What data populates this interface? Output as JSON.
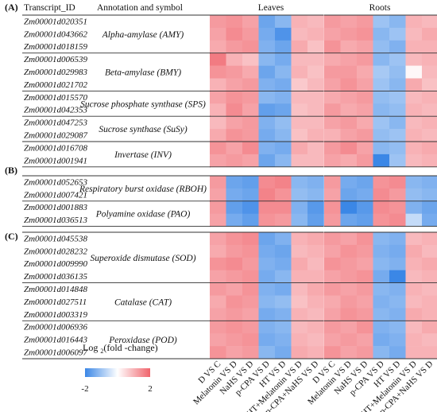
{
  "figure": {
    "header_id": "Transcript_ID",
    "header_annotation": "Annotation and symbol",
    "header_leaves": "Leaves",
    "header_roots": "Roots",
    "panel_labels": [
      "(A)",
      "(B)",
      "(C)"
    ],
    "legend_title_pre": "Log ",
    "legend_title_sub": "2",
    "legend_title_post": "(fold -change)",
    "legend_min": "-2",
    "legend_max": "2"
  },
  "chart_data": {
    "type": "heatmap",
    "scale": {
      "min": -2,
      "max": 2,
      "low_color": "#3b87e6",
      "mid_color": "#ffffff",
      "high_color": "#f0646c"
    },
    "columns": [
      "D VS C",
      "Melatonin VS D",
      "NaHS VS D",
      "p-CPA VS D",
      "HT VS D",
      "HT+Melatonin VS D",
      "p-CPA+NaHS VS D"
    ],
    "groups": [
      {
        "panel": "(A)",
        "annotation": "Alpha-amylase (AMY)",
        "rows": [
          "Zm00001d020351",
          "Zm00001d043662",
          "Zm00001d018159"
        ]
      },
      {
        "panel": "(A)",
        "annotation": "Beta-amylase (BMY)",
        "rows": [
          "Zm00001d006539",
          "Zm00001d029983",
          "Zm00001d021702"
        ]
      },
      {
        "panel": "(A)",
        "annotation": "Sucrose phosphate synthase (SPS)",
        "rows": [
          "Zm00001d015570",
          "Zm00001d042353"
        ]
      },
      {
        "panel": "(A)",
        "annotation": "Sucrose synthase (SuSy)",
        "rows": [
          "Zm00001d047253",
          "Zm00001d029087"
        ]
      },
      {
        "panel": "(A)",
        "annotation": "Invertase (INV)",
        "rows": [
          "Zm00001d016708",
          "Zm00001d001941"
        ]
      },
      {
        "panel": "(B)",
        "annotation": "Respiratory burst oxidase (RBOH)",
        "rows": [
          "Zm00001d052653",
          "Zm00001d007421"
        ]
      },
      {
        "panel": "(B)",
        "annotation": "Polyamine oxidase (PAO)",
        "rows": [
          "Zm00001d001883",
          "Zm00001d036513"
        ]
      },
      {
        "panel": "(C)",
        "annotation": "Superoxide dismutase (SOD)",
        "rows": [
          "Zm00001d045538",
          "Zm00001d028232",
          "Zm00001d009990",
          "Zm00001d036135"
        ]
      },
      {
        "panel": "(C)",
        "annotation": "Catalase (CAT)",
        "rows": [
          "Zm00001d014848",
          "Zm00001d027511",
          "Zm00001d003319"
        ]
      },
      {
        "panel": "(C)",
        "annotation": "Peroxidase (POD)",
        "rows": [
          "Zm00001d006936",
          "Zm00001d016443",
          "Zm00001d006097"
        ]
      }
    ],
    "leaves": [
      [
        1.3,
        1.4,
        1.2,
        -1.5,
        -1.2,
        1.0,
        0.9
      ],
      [
        1.2,
        1.5,
        1.3,
        -1.4,
        -1.8,
        0.9,
        1.0
      ],
      [
        1.1,
        1.3,
        1.4,
        -1.3,
        -1.5,
        1.1,
        0.8
      ],
      [
        1.7,
        1.0,
        0.8,
        -1.2,
        -1.4,
        0.9,
        0.9
      ],
      [
        1.4,
        1.3,
        1.1,
        -1.5,
        -1.2,
        1.0,
        0.8
      ],
      [
        1.0,
        1.2,
        1.3,
        -1.3,
        -1.4,
        0.7,
        0.9
      ],
      [
        1.2,
        1.4,
        1.3,
        -1.2,
        -1.3,
        0.9,
        0.9
      ],
      [
        1.0,
        1.5,
        1.2,
        -1.6,
        -1.5,
        0.8,
        0.9
      ],
      [
        0.9,
        1.2,
        1.3,
        -1.3,
        -1.1,
        0.9,
        0.9
      ],
      [
        1.1,
        1.4,
        1.3,
        -1.4,
        -1.2,
        0.8,
        1.0
      ],
      [
        1.4,
        1.2,
        1.5,
        -1.3,
        -1.4,
        1.1,
        0.9
      ],
      [
        1.2,
        1.3,
        1.2,
        -1.5,
        -1.2,
        0.9,
        0.9
      ],
      [
        1.3,
        -1.5,
        -1.6,
        1.5,
        1.6,
        -1.2,
        -1.3
      ],
      [
        1.2,
        -1.4,
        -1.5,
        1.6,
        1.4,
        -1.1,
        -1.2
      ],
      [
        1.3,
        -1.6,
        -1.8,
        1.5,
        1.5,
        -1.3,
        -1.7
      ],
      [
        1.2,
        -1.4,
        -1.6,
        1.4,
        1.3,
        -1.2,
        -1.6
      ],
      [
        1.2,
        1.4,
        1.5,
        -1.5,
        -1.3,
        1.0,
        1.1
      ],
      [
        1.1,
        1.3,
        1.4,
        -1.4,
        -1.5,
        0.9,
        1.0
      ],
      [
        1.4,
        1.5,
        1.3,
        -1.3,
        -1.4,
        1.1,
        0.9
      ],
      [
        1.2,
        1.3,
        1.4,
        -1.4,
        -1.2,
        1.0,
        1.0
      ],
      [
        1.3,
        1.2,
        1.4,
        -1.3,
        -1.4,
        0.9,
        1.1
      ],
      [
        1.1,
        1.4,
        1.3,
        -1.2,
        -1.1,
        0.8,
        1.0
      ],
      [
        1.2,
        1.3,
        1.2,
        -1.4,
        -1.3,
        1.0,
        0.9
      ],
      [
        1.3,
        1.4,
        1.3,
        -1.3,
        -1.2,
        0.9,
        1.0
      ],
      [
        1.2,
        1.3,
        1.4,
        -1.4,
        -1.3,
        1.0,
        0.9
      ],
      [
        1.4,
        1.2,
        1.3,
        -1.2,
        -1.4,
        1.1,
        1.0
      ]
    ],
    "roots": [
      [
        1.3,
        1.2,
        1.3,
        -1.0,
        -1.2,
        1.0,
        0.9
      ],
      [
        1.2,
        1.3,
        1.4,
        -1.2,
        -1.0,
        0.9,
        1.1
      ],
      [
        1.4,
        1.1,
        1.2,
        -1.1,
        -1.3,
        1.0,
        1.0
      ],
      [
        1.1,
        1.2,
        1.3,
        -1.2,
        -1.0,
        0.9,
        1.0
      ],
      [
        1.3,
        1.3,
        1.1,
        -0.9,
        -1.1,
        0.1,
        0.9
      ],
      [
        1.2,
        1.4,
        1.2,
        -1.0,
        -1.2,
        1.1,
        0.8
      ],
      [
        1.1,
        1.2,
        1.3,
        -1.1,
        -1.0,
        0.9,
        1.0
      ],
      [
        1.3,
        1.1,
        1.2,
        -1.2,
        -1.1,
        1.0,
        0.9
      ],
      [
        1.2,
        1.3,
        1.1,
        -1.0,
        -1.2,
        0.9,
        1.0
      ],
      [
        1.0,
        1.2,
        1.3,
        -1.1,
        -1.0,
        1.0,
        0.9
      ],
      [
        1.3,
        1.5,
        1.2,
        -1.2,
        -1.1,
        1.0,
        1.1
      ],
      [
        1.2,
        1.1,
        1.3,
        -2.0,
        -1.0,
        0.9,
        1.0
      ],
      [
        1.3,
        -1.4,
        -1.5,
        1.4,
        1.5,
        -1.2,
        -1.3
      ],
      [
        1.2,
        -1.5,
        -1.4,
        1.5,
        1.3,
        -1.1,
        -1.2
      ],
      [
        1.4,
        -2.0,
        -1.7,
        1.5,
        1.4,
        -1.3,
        -1.5
      ],
      [
        1.3,
        -1.5,
        -1.6,
        1.4,
        1.5,
        -0.6,
        -1.4
      ],
      [
        1.3,
        1.2,
        1.4,
        -1.2,
        -1.3,
        0.9,
        1.0
      ],
      [
        1.2,
        1.4,
        1.3,
        -1.3,
        -1.4,
        1.1,
        0.9
      ],
      [
        1.4,
        1.3,
        1.2,
        -1.2,
        -1.3,
        1.0,
        1.1
      ],
      [
        1.2,
        1.3,
        1.4,
        -1.4,
        -2.0,
        0.9,
        1.0
      ],
      [
        1.3,
        1.2,
        1.3,
        -1.2,
        -1.3,
        1.0,
        0.9
      ],
      [
        1.1,
        1.3,
        1.2,
        -1.3,
        -1.2,
        0.9,
        1.0
      ],
      [
        1.2,
        1.4,
        1.3,
        -1.2,
        -1.3,
        1.1,
        1.0
      ],
      [
        1.3,
        1.2,
        1.4,
        -1.3,
        -1.2,
        0.9,
        1.1
      ],
      [
        1.2,
        1.3,
        1.2,
        -1.4,
        -1.3,
        1.0,
        0.9
      ],
      [
        1.4,
        1.2,
        1.3,
        -1.2,
        -1.4,
        1.0,
        1.0
      ]
    ]
  }
}
